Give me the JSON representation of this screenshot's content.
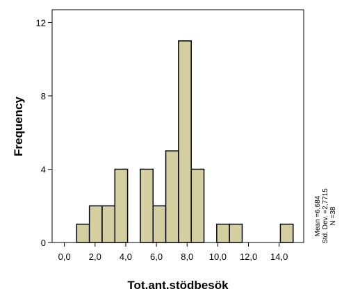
{
  "chart_data": {
    "type": "histogram",
    "x_label": "Tot.ant.stödbesök",
    "y_label": "Frequency",
    "bins": [
      0.8,
      1.63,
      2.46,
      3.29,
      4.12,
      4.95,
      5.78,
      6.61,
      7.44,
      8.27,
      9.1,
      9.93,
      10.76,
      11.59,
      12.42,
      13.25,
      14.08,
      14.91
    ],
    "counts": [
      1,
      2,
      2,
      4,
      0,
      4,
      2,
      5,
      11,
      4,
      0,
      1,
      1,
      0,
      0,
      0,
      1
    ],
    "color": "#d4cfa0",
    "xlim": [
      -0.8,
      15.6
    ],
    "xticks": [
      {
        "value": 0,
        "label": "0,0"
      },
      {
        "value": 2,
        "label": "2,0"
      },
      {
        "value": 4,
        "label": "4,0"
      },
      {
        "value": 6,
        "label": "6,0"
      },
      {
        "value": 8,
        "label": "8,0"
      },
      {
        "value": 10,
        "label": "10,0"
      },
      {
        "value": 12,
        "label": "12,0"
      },
      {
        "value": 14,
        "label": "14,0"
      }
    ],
    "ylim": [
      0,
      12.7
    ],
    "yticks": [
      0,
      4,
      8,
      12
    ],
    "annotations": [
      "Mean =6,684",
      "Std. Dev. =2,7715",
      "N =38"
    ]
  }
}
